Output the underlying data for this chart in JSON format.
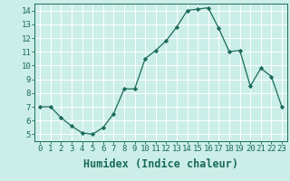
{
  "x": [
    0,
    1,
    2,
    3,
    4,
    5,
    6,
    7,
    8,
    9,
    10,
    11,
    12,
    13,
    14,
    15,
    16,
    17,
    18,
    19,
    20,
    21,
    22,
    23
  ],
  "y": [
    7,
    7,
    6.2,
    5.6,
    5.1,
    5.0,
    5.5,
    6.5,
    8.3,
    8.3,
    10.5,
    11.1,
    11.8,
    12.8,
    14.0,
    14.1,
    14.2,
    12.7,
    11.0,
    11.1,
    8.5,
    9.8,
    9.2,
    7.0
  ],
  "xlabel": "Humidex (Indice chaleur)",
  "ylabel": "",
  "xlim": [
    -0.5,
    23.5
  ],
  "ylim": [
    4.5,
    14.5
  ],
  "yticks": [
    5,
    6,
    7,
    8,
    9,
    10,
    11,
    12,
    13,
    14
  ],
  "xticks": [
    0,
    1,
    2,
    3,
    4,
    5,
    6,
    7,
    8,
    9,
    10,
    11,
    12,
    13,
    14,
    15,
    16,
    17,
    18,
    19,
    20,
    21,
    22,
    23
  ],
  "line_color": "#1a6b5a",
  "marker": "D",
  "marker_size": 2.2,
  "bg_color": "#cceee8",
  "grid_color": "#ffffff",
  "tick_label_fontsize": 6.5,
  "xlabel_fontsize": 8.5
}
